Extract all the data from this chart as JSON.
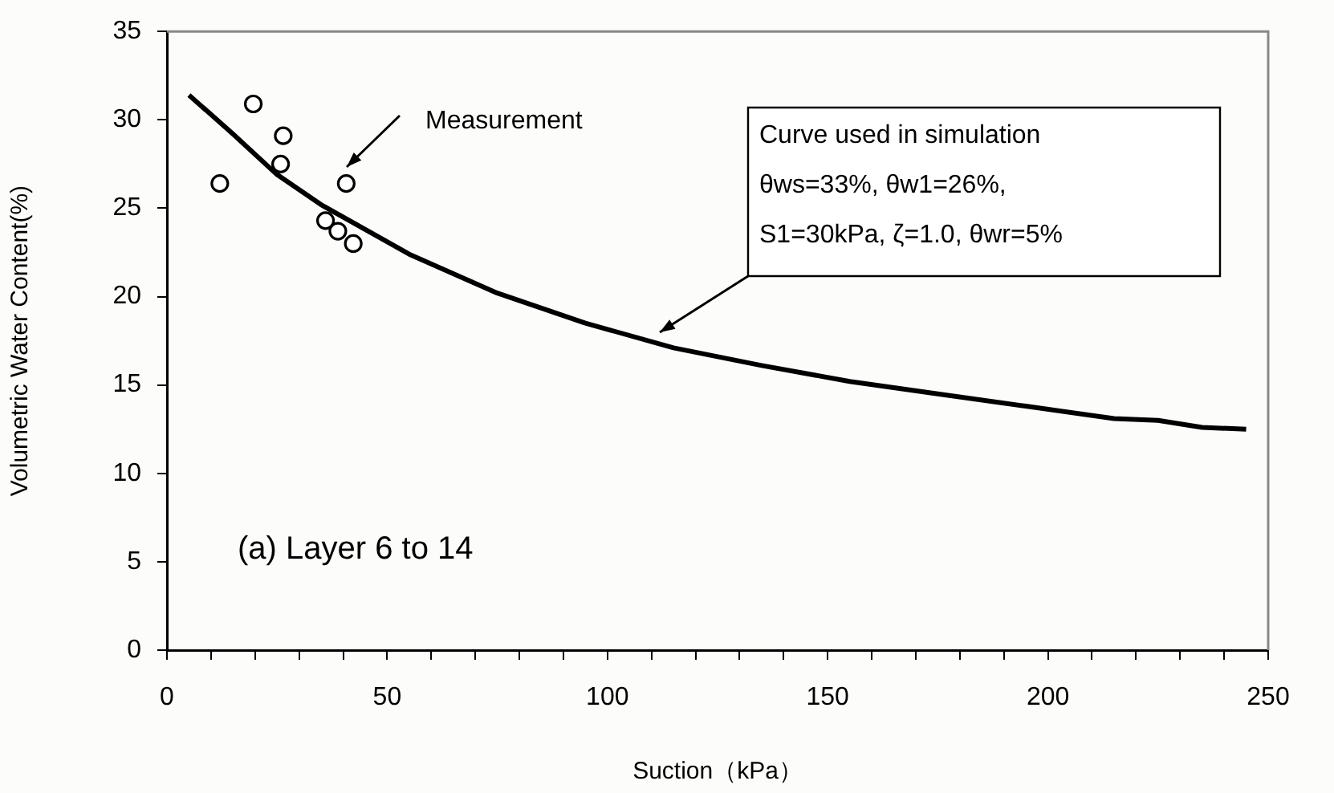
{
  "chart_data": {
    "type": "line",
    "xlabel": "Suction（kPa）",
    "ylabel": "Volumetric Water Content(%)",
    "xlim": [
      0,
      250
    ],
    "xticks": [
      0,
      {
        "value": 10,
        "label": null
      },
      {
        "value": 20,
        "label": null
      },
      {
        "value": 30,
        "label": null
      },
      {
        "value": 40,
        "label": null
      },
      50,
      {
        "value": 60,
        "label": null
      },
      {
        "value": 70,
        "label": null
      },
      {
        "value": 80,
        "label": null
      },
      {
        "value": 90,
        "label": null
      },
      100,
      {
        "value": 110,
        "label": null
      },
      {
        "value": 120,
        "label": null
      },
      {
        "value": 130,
        "label": null
      },
      {
        "value": 140,
        "label": null
      },
      150,
      {
        "value": 160,
        "label": null
      },
      {
        "value": 170,
        "label": null
      },
      {
        "value": 180,
        "label": null
      },
      {
        "value": 190,
        "label": null
      },
      200,
      {
        "value": 210,
        "label": null
      },
      {
        "value": 220,
        "label": null
      },
      {
        "value": 230,
        "label": null
      },
      {
        "value": 240,
        "label": null
      },
      250
    ],
    "ylim": [
      0,
      35
    ],
    "yticks": [
      0,
      5,
      10,
      15,
      20,
      25,
      30,
      35
    ],
    "grid": false,
    "legend": false,
    "series": [
      {
        "color": "#000000",
        "marker": "none",
        "line_style": "solid",
        "x": [
          5,
          15,
          25,
          35,
          55,
          75,
          95,
          115,
          135,
          155,
          175,
          195,
          215,
          225,
          235,
          245
        ],
        "values": [
          31.4,
          29.2,
          26.9,
          25.2,
          22.4,
          20.2,
          18.5,
          17.1,
          16.1,
          15.2,
          14.5,
          13.8,
          13.1,
          13.0,
          12.6,
          12.5
        ]
      },
      {
        "type": "scatter",
        "color": "#000000",
        "marker": "circle",
        "x": [
          12,
          19.6,
          26.4,
          25.8,
          40.7,
          36,
          38.8,
          42.3
        ],
        "values": [
          26.4,
          30.9,
          29.1,
          27.5,
          26.4,
          24.3,
          23.7,
          23
        ]
      }
    ],
    "annotations": [
      "Measurement",
      "Curve used in simulation\nθws=33%, θw1=26%,\nS1=30kPa, ζ=1.0, θwr=5%",
      "(a) Layer 6 to 14"
    ]
  }
}
